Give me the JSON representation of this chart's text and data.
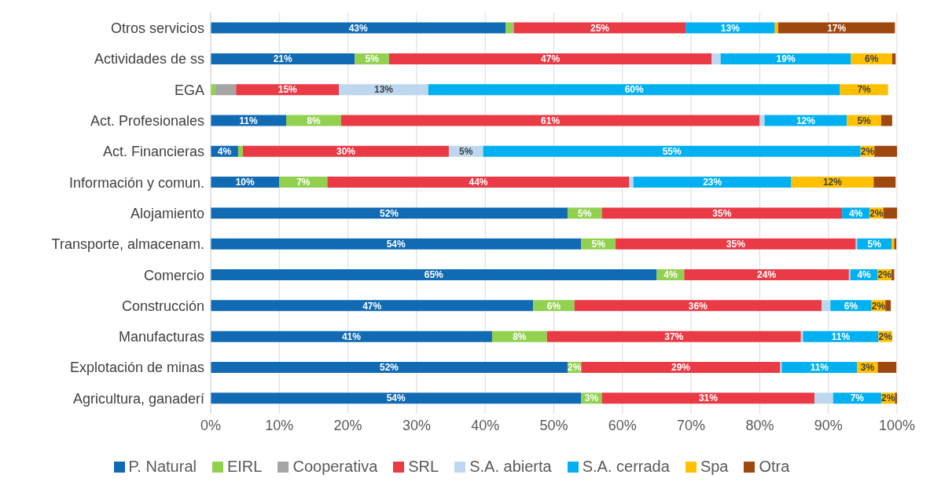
{
  "chart_data": {
    "type": "bar",
    "orientation": "horizontal",
    "stacked": true,
    "categories": [
      "Otros servicios",
      "Actividades de ss",
      "EGA",
      "Act. Profesionales",
      "Act. Financieras",
      "Información y comun.",
      "Alojamiento",
      "Transporte, almacenam.",
      "Comercio",
      "Construcción",
      "Manufacturas",
      "Explotación de minas",
      "Agricultura, ganaderí"
    ],
    "series": [
      {
        "name": "P. Natural",
        "color": "#106ab4",
        "values": [
          43,
          21,
          0,
          11,
          4,
          10,
          52,
          54,
          65,
          47,
          41,
          52,
          54
        ],
        "value_labels": [
          "43%",
          "21%",
          null,
          "11%",
          "4%",
          "10%",
          "52%",
          "54%",
          "65%",
          "47%",
          "41%",
          "52%",
          "54%"
        ]
      },
      {
        "name": "EIRL",
        "color": "#92d050",
        "values": [
          1,
          5,
          0.7,
          8,
          0.7,
          7,
          5,
          5,
          4,
          6,
          8,
          2,
          3
        ],
        "value_labels": [
          null,
          "5%",
          null,
          "8%",
          null,
          "7%",
          "5%",
          "5%",
          "4%",
          "6%",
          "8%",
          "2%",
          "3%"
        ]
      },
      {
        "name": "Cooperativa",
        "color": "#a5a5a5",
        "values": [
          0.2,
          0,
          3,
          0,
          0,
          0,
          0,
          0,
          0,
          0,
          0,
          0,
          0
        ],
        "value_labels": [
          null,
          null,
          null,
          null,
          null,
          null,
          null,
          null,
          null,
          null,
          null,
          null,
          null
        ]
      },
      {
        "name": "SRL",
        "color": "#e93a45",
        "values": [
          25,
          47,
          15,
          61,
          30,
          44,
          35,
          35,
          24,
          36,
          37,
          29,
          31
        ],
        "value_labels": [
          "25%",
          "47%",
          "15%",
          "61%",
          "30%",
          "44%",
          "35%",
          "35%",
          "24%",
          "36%",
          "37%",
          "29%",
          "31%"
        ]
      },
      {
        "name": "S.A. abierta",
        "color": "#bdd7ee",
        "values": [
          0,
          1.3,
          13,
          0.7,
          5,
          0.6,
          0,
          0.2,
          0.2,
          1.3,
          0.3,
          0.2,
          2.7
        ],
        "value_labels": [
          null,
          null,
          "13%",
          null,
          "5%",
          null,
          null,
          null,
          null,
          null,
          null,
          null,
          null
        ]
      },
      {
        "name": "S.A. cerrada",
        "color": "#00b0f0",
        "values": [
          13,
          19,
          60,
          12,
          55,
          23,
          4,
          5,
          4,
          6,
          11,
          11,
          7
        ],
        "value_labels": [
          "13%",
          "19%",
          "60%",
          "12%",
          "55%",
          "23%",
          "4%",
          "5%",
          "4%",
          "6%",
          "11%",
          "11%",
          "7%"
        ]
      },
      {
        "name": "Spa",
        "color": "#ffc000",
        "values": [
          0.5,
          6,
          7,
          5,
          2,
          12,
          2,
          0.4,
          2,
          2,
          2,
          3,
          2
        ],
        "value_labels": [
          null,
          "6%",
          "7%",
          "5%",
          "2%",
          "12%",
          "2%",
          null,
          "2%",
          "2%",
          "2%",
          "3%",
          "2%"
        ]
      },
      {
        "name": "Otra",
        "color": "#9e480e",
        "values": [
          17,
          0.5,
          0,
          1.6,
          3.3,
          3.2,
          2,
          0.3,
          0.4,
          0.8,
          0,
          2.7,
          0.3
        ],
        "value_labels": [
          "17%",
          null,
          null,
          null,
          null,
          null,
          null,
          null,
          null,
          null,
          null,
          null,
          null
        ]
      }
    ],
    "xlim": [
      0,
      100
    ],
    "xticks": [
      {
        "value": 0,
        "label": "0%"
      },
      {
        "value": 10,
        "label": "10%"
      },
      {
        "value": 20,
        "label": "20%"
      },
      {
        "value": 30,
        "label": "30%"
      },
      {
        "value": 40,
        "label": "40%"
      },
      {
        "value": 50,
        "label": "50%"
      },
      {
        "value": 60,
        "label": "60%"
      },
      {
        "value": 70,
        "label": "70%"
      },
      {
        "value": 80,
        "label": "80%"
      },
      {
        "value": 90,
        "label": "90%"
      },
      {
        "value": 100,
        "label": "100%"
      }
    ],
    "grid": "x",
    "legend": "bottom"
  }
}
